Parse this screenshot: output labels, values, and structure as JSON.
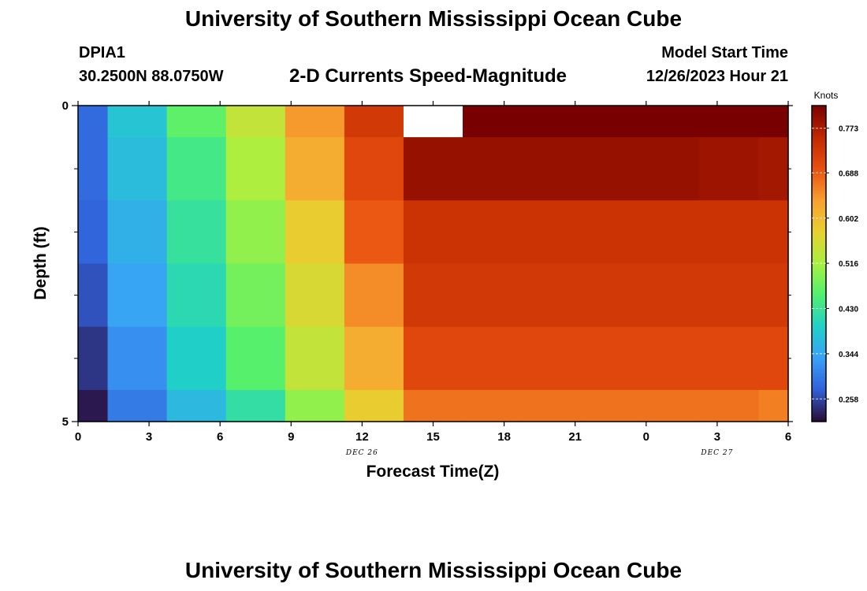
{
  "header": {
    "title": "University of Southern Mississippi Ocean Cube",
    "station": "DPIA1",
    "coords": "30.2500N  88.0750W",
    "subtitle": "2-D Currents Speed-Magnitude",
    "model_start_label": "Model Start Time",
    "model_start_value": "12/26/2023 Hour 21"
  },
  "footer": {
    "title": "University of Southern Mississippi Ocean Cube"
  },
  "chart_data": {
    "type": "heatmap",
    "title": "2-D Currents Speed-Magnitude",
    "xlabel": "Forecast Time(Z)",
    "ylabel": "Depth (ft)",
    "x_ticks": [
      "0",
      "3",
      "6",
      "9",
      "12",
      "15",
      "18",
      "21",
      "0",
      "3",
      "6"
    ],
    "x_hours": [
      0,
      3,
      6,
      9,
      12,
      15,
      18,
      21,
      24,
      27,
      30
    ],
    "xlim": [
      0,
      30
    ],
    "date_labels": [
      {
        "text": "DEC 26",
        "hour": 12
      },
      {
        "text": "DEC 27",
        "hour": 27
      }
    ],
    "y_ticks": [
      "0",
      "5"
    ],
    "ylim": [
      0,
      5
    ],
    "y_minor_ticks": [
      1,
      2,
      3,
      4
    ],
    "column_bounds_hours": [
      0,
      1.25,
      3.75,
      6.25,
      8.75,
      11.25,
      13.75,
      16.25,
      18.75,
      21.25,
      23.75,
      26.25,
      28.75,
      30
    ],
    "row_bounds_ft": [
      0,
      0.5,
      1.5,
      2.5,
      3.5,
      4.5,
      5
    ],
    "speed_knots": [
      [
        0.285,
        0.38,
        0.465,
        0.54,
        0.64,
        0.73,
        null,
        0.83,
        0.83,
        0.83,
        0.828,
        0.825,
        0.82
      ],
      [
        0.285,
        0.37,
        0.44,
        0.52,
        0.62,
        0.71,
        0.79,
        0.79,
        0.79,
        0.79,
        0.79,
        0.785,
        0.78
      ],
      [
        0.28,
        0.355,
        0.425,
        0.5,
        0.58,
        0.69,
        0.74,
        0.74,
        0.74,
        0.74,
        0.74,
        0.74,
        0.74
      ],
      [
        0.265,
        0.34,
        0.41,
        0.48,
        0.56,
        0.65,
        0.73,
        0.73,
        0.73,
        0.73,
        0.73,
        0.73,
        0.73
      ],
      [
        0.245,
        0.32,
        0.395,
        0.46,
        0.54,
        0.62,
        0.71,
        0.71,
        0.71,
        0.71,
        0.71,
        0.71,
        0.71
      ],
      [
        0.225,
        0.3,
        0.365,
        0.42,
        0.5,
        0.58,
        0.67,
        0.67,
        0.67,
        0.67,
        0.67,
        0.67,
        0.66
      ]
    ],
    "missing_color": "#ffffff",
    "colorbar": {
      "label": "Knots",
      "min": 0.215,
      "max": 0.816,
      "ticks": [
        0.258,
        0.344,
        0.43,
        0.516,
        0.602,
        0.688,
        0.773
      ],
      "tick_labels": [
        "0.258",
        "0.344",
        "0.430",
        "0.516",
        "0.602",
        "0.688",
        "0.773"
      ],
      "colormap": [
        "#2a0a32",
        "#3060d8",
        "#3aa0f8",
        "#20d0c8",
        "#50f070",
        "#a8f040",
        "#e8d030",
        "#f8a030",
        "#e85010",
        "#c02800",
        "#780000"
      ]
    }
  }
}
